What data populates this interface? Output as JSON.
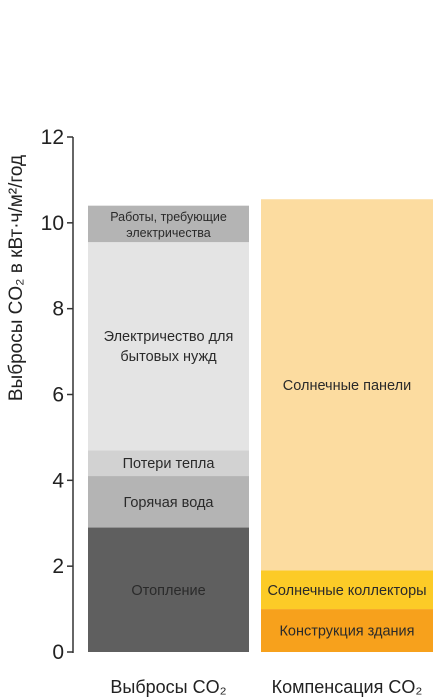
{
  "chart_data": {
    "type": "bar",
    "stacked": true,
    "ylabel": "Выбросы CO₂ в кВт·ч/м²/год",
    "ylim": [
      0,
      12
    ],
    "yticks": [
      0,
      2,
      4,
      6,
      8,
      10,
      12
    ],
    "categories": [
      "Выбросы CO₂",
      "Компенсация CO₂"
    ],
    "bars": [
      {
        "category": "Выбросы CO₂",
        "segments": [
          {
            "label": "Отопление",
            "value": 2.9,
            "color": "#5f5f5f"
          },
          {
            "label": "Горячая вода",
            "value": 1.2,
            "color": "#b4b4b4"
          },
          {
            "label": "Потери тепла",
            "value": 0.6,
            "color": "#d2d2d2"
          },
          {
            "label": "Электричество для бытовых нужд",
            "value": 4.85,
            "color": "#e4e4e4"
          },
          {
            "label": "Работы, требующие электричества",
            "value": 0.85,
            "color": "#b4b4b4"
          }
        ]
      },
      {
        "category": "Компенсация CO₂",
        "segments": [
          {
            "label": "Конструкция здания",
            "value": 1.0,
            "color": "#f7a11c"
          },
          {
            "label": "Солнечные коллекторы",
            "value": 0.9,
            "color": "#fccb27"
          },
          {
            "label": "Солнечные панели",
            "value": 8.65,
            "color": "#fcdca0"
          }
        ]
      }
    ],
    "grid": false,
    "legend": "none"
  }
}
